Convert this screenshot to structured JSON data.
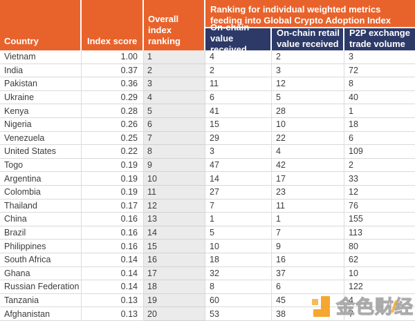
{
  "table": {
    "columns": {
      "country": "Country",
      "index_score": "Index score",
      "overall_ranking": "Overall index ranking",
      "onchain_value": "On-chain value received",
      "onchain_retail": "On-chain retail value received",
      "p2p_volume": "P2P exchange trade volume"
    },
    "metrics_group_header": "Ranking for individual weighted metrics feeding into Global Crypto Adoption Index",
    "rows": [
      [
        "Vietnam",
        "1.00",
        "1",
        "4",
        "2",
        "3"
      ],
      [
        "India",
        "0.37",
        "2",
        "2",
        "3",
        "72"
      ],
      [
        "Pakistan",
        "0.36",
        "3",
        "11",
        "12",
        "8"
      ],
      [
        "Ukraine",
        "0.29",
        "4",
        "6",
        "5",
        "40"
      ],
      [
        "Kenya",
        "0.28",
        "5",
        "41",
        "28",
        "1"
      ],
      [
        "Nigeria",
        "0.26",
        "6",
        "15",
        "10",
        "18"
      ],
      [
        "Venezuela",
        "0.25",
        "7",
        "29",
        "22",
        "6"
      ],
      [
        "United States",
        "0.22",
        "8",
        "3",
        "4",
        "109"
      ],
      [
        "Togo",
        "0.19",
        "9",
        "47",
        "42",
        "2"
      ],
      [
        "Argentina",
        "0.19",
        "10",
        "14",
        "17",
        "33"
      ],
      [
        "Colombia",
        "0.19",
        "11",
        "27",
        "23",
        "12"
      ],
      [
        "Thailand",
        "0.17",
        "12",
        "7",
        "11",
        "76"
      ],
      [
        "China",
        "0.16",
        "13",
        "1",
        "1",
        "155"
      ],
      [
        "Brazil",
        "0.16",
        "14",
        "5",
        "7",
        "113"
      ],
      [
        "Philippines",
        "0.16",
        "15",
        "10",
        "9",
        "80"
      ],
      [
        "South Africa",
        "0.14",
        "16",
        "18",
        "16",
        "62"
      ],
      [
        "Ghana",
        "0.14",
        "17",
        "32",
        "37",
        "10"
      ],
      [
        "Russian Federation",
        "0.14",
        "18",
        "8",
        "6",
        "122"
      ],
      [
        "Tanzania",
        "0.13",
        "19",
        "60",
        "45",
        "4"
      ],
      [
        "Afghanistan",
        "0.13",
        "20",
        "53",
        "38",
        "7"
      ]
    ]
  },
  "watermark": {
    "text": "金色财经"
  },
  "colors": {
    "header_orange": "#E8632C",
    "header_navy": "#2D3A68",
    "ranking_column_bg": "#EBEBEB",
    "row_border": "#D9D9D9",
    "body_text": "#3B3B3B",
    "watermark_gold": "#F5A01E"
  },
  "chart_data": {
    "type": "table",
    "title": "Global Crypto Adoption Index",
    "group_header": "Ranking for individual weighted metrics feeding into Global Crypto Adoption Index",
    "columns": [
      "Country",
      "Index score",
      "Overall index ranking",
      "On-chain value received",
      "On-chain retail value received",
      "P2P exchange trade volume"
    ],
    "rows": [
      [
        "Vietnam",
        1.0,
        1,
        4,
        2,
        3
      ],
      [
        "India",
        0.37,
        2,
        2,
        3,
        72
      ],
      [
        "Pakistan",
        0.36,
        3,
        11,
        12,
        8
      ],
      [
        "Ukraine",
        0.29,
        4,
        6,
        5,
        40
      ],
      [
        "Kenya",
        0.28,
        5,
        41,
        28,
        1
      ],
      [
        "Nigeria",
        0.26,
        6,
        15,
        10,
        18
      ],
      [
        "Venezuela",
        0.25,
        7,
        29,
        22,
        6
      ],
      [
        "United States",
        0.22,
        8,
        3,
        4,
        109
      ],
      [
        "Togo",
        0.19,
        9,
        47,
        42,
        2
      ],
      [
        "Argentina",
        0.19,
        10,
        14,
        17,
        33
      ],
      [
        "Colombia",
        0.19,
        11,
        27,
        23,
        12
      ],
      [
        "Thailand",
        0.17,
        12,
        7,
        11,
        76
      ],
      [
        "China",
        0.16,
        13,
        1,
        1,
        155
      ],
      [
        "Brazil",
        0.16,
        14,
        5,
        7,
        113
      ],
      [
        "Philippines",
        0.16,
        15,
        10,
        9,
        80
      ],
      [
        "South Africa",
        0.14,
        16,
        18,
        16,
        62
      ],
      [
        "Ghana",
        0.14,
        17,
        32,
        37,
        10
      ],
      [
        "Russian Federation",
        0.14,
        18,
        8,
        6,
        122
      ],
      [
        "Tanzania",
        0.13,
        19,
        60,
        45,
        4
      ],
      [
        "Afghanistan",
        0.13,
        20,
        53,
        38,
        7
      ]
    ]
  }
}
